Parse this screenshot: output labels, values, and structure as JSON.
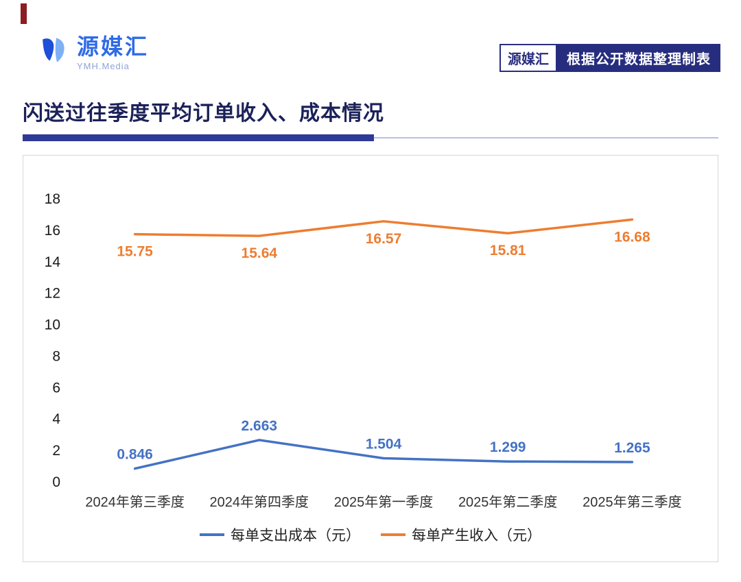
{
  "page": {
    "logo": {
      "name": "源媒汇",
      "subtitle": "YMH.Media"
    },
    "badge": {
      "brand": "源媒汇",
      "text": "根据公开数据整理制表"
    },
    "title": "闪送过往季度平均订单收入、成本情况"
  },
  "colors": {
    "navy": "#272d7e",
    "accent_red": "#8c1d21",
    "cost_blue": "#4472c4",
    "revenue_orange": "#ed7d31"
  },
  "chart_data": {
    "type": "line",
    "title": "闪送过往季度平均订单收入、成本情况",
    "categories": [
      "2024年第三季度",
      "2024年第四季度",
      "2025年第一季度",
      "2025年第二季度",
      "2025年第三季度"
    ],
    "series": [
      {
        "name": "每单支出成本（元）",
        "color": "#4472c4",
        "values": [
          0.846,
          2.663,
          1.504,
          1.299,
          1.265
        ],
        "labels": [
          "0.846",
          "2.663",
          "1.504",
          "1.299",
          "1.265"
        ],
        "label_position": "above"
      },
      {
        "name": "每单产生收入（元）",
        "color": "#ed7d31",
        "values": [
          15.75,
          15.64,
          16.57,
          15.81,
          16.68
        ],
        "labels": [
          "15.75",
          "15.64",
          "16.57",
          "15.81",
          "16.68"
        ],
        "label_position": "below"
      }
    ],
    "ylim": [
      0,
      18
    ],
    "ytick_step": 2,
    "yticks": [
      "0",
      "2",
      "4",
      "6",
      "8",
      "10",
      "12",
      "14",
      "16",
      "18"
    ],
    "grid": false,
    "legend_position": "bottom"
  }
}
